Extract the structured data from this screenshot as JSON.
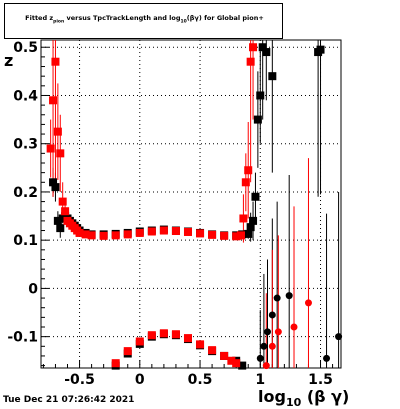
{
  "title": {
    "pre": "Fitted  z",
    "sub1": "pion",
    "mid": " versus TpcTrackLength and log",
    "sub2": "10",
    "post": "(βγ) for Global pion+"
  },
  "footer": "Tue Dec 21 07:26:42 2021",
  "chart_data": {
    "type": "scatter",
    "xlabel": "log10 (β γ)",
    "xlabel_main": "log",
    "xlabel_sub": "10",
    "xlabel_rest": " (β γ)",
    "ylabel": "z",
    "xlim": [
      -0.82,
      1.67
    ],
    "ylim": [
      -0.165,
      0.515
    ],
    "xticks": [
      -0.5,
      0,
      0.5,
      1,
      1.5
    ],
    "xtick_labels": [
      "-0.5",
      "0",
      "0.5",
      "1",
      "1.5"
    ],
    "yticks": [
      -0.1,
      0,
      0.1,
      0.2,
      0.3,
      0.4,
      0.5
    ],
    "ytick_labels": [
      "-0.1",
      "0",
      "0.1",
      "0.2",
      "0.3",
      "0.4",
      "0.5"
    ],
    "grid": true,
    "colors": {
      "black": "#000000",
      "red": "#ff0000"
    },
    "series": [
      {
        "color": "black",
        "marker": "square",
        "points": [
          {
            "x": -0.72,
            "y": 0.22,
            "e": 0.03
          },
          {
            "x": -0.7,
            "y": 0.21,
            "e": 0.03
          },
          {
            "x": -0.68,
            "y": 0.14,
            "e": 0.02
          },
          {
            "x": -0.66,
            "y": 0.125,
            "e": 0.02
          },
          {
            "x": -0.64,
            "y": 0.145,
            "e": 0.01
          },
          {
            "x": -0.62,
            "y": 0.15,
            "e": 0.01
          },
          {
            "x": -0.6,
            "y": 0.145,
            "e": 0.01
          },
          {
            "x": -0.58,
            "y": 0.14,
            "e": 0.005
          },
          {
            "x": -0.56,
            "y": 0.135,
            "e": 0.005
          },
          {
            "x": -0.54,
            "y": 0.13,
            "e": 0.005
          },
          {
            "x": -0.52,
            "y": 0.125,
            "e": 0.005
          },
          {
            "x": -0.5,
            "y": 0.12,
            "e": 0.005
          },
          {
            "x": -0.45,
            "y": 0.115,
            "e": 0.003
          },
          {
            "x": -0.4,
            "y": 0.112,
            "e": 0.003
          },
          {
            "x": -0.3,
            "y": 0.112,
            "e": 0.003
          },
          {
            "x": -0.2,
            "y": 0.113,
            "e": 0.003
          },
          {
            "x": -0.1,
            "y": 0.115,
            "e": 0.003
          },
          {
            "x": 0.0,
            "y": 0.118,
            "e": 0.003
          },
          {
            "x": 0.1,
            "y": 0.12,
            "e": 0.003
          },
          {
            "x": 0.2,
            "y": 0.122,
            "e": 0.003
          },
          {
            "x": 0.3,
            "y": 0.12,
            "e": 0.003
          },
          {
            "x": 0.4,
            "y": 0.118,
            "e": 0.003
          },
          {
            "x": 0.5,
            "y": 0.115,
            "e": 0.003
          },
          {
            "x": 0.6,
            "y": 0.112,
            "e": 0.003
          },
          {
            "x": 0.7,
            "y": 0.11,
            "e": 0.003
          },
          {
            "x": 0.8,
            "y": 0.11,
            "e": 0.004
          },
          {
            "x": 0.85,
            "y": 0.112,
            "e": 0.005
          },
          {
            "x": 0.9,
            "y": 0.113,
            "e": 0.01
          },
          {
            "x": 0.92,
            "y": 0.127,
            "e": 0.03
          },
          {
            "x": 0.94,
            "y": 0.14,
            "e": 0.04
          },
          {
            "x": 0.96,
            "y": 0.19,
            "e": 0.05
          },
          {
            "x": 0.98,
            "y": 0.35,
            "e": 0.1
          },
          {
            "x": 1.0,
            "y": 0.4,
            "e": 0.1
          },
          {
            "x": 1.02,
            "y": 0.5,
            "e": 0.15
          },
          {
            "x": 1.05,
            "y": 0.49,
            "e": 0.1
          },
          {
            "x": 1.1,
            "y": 0.44,
            "e": 0.2
          },
          {
            "x": 1.48,
            "y": 0.49,
            "e": 0.3
          },
          {
            "x": 1.5,
            "y": 0.495,
            "e": 0.3
          },
          {
            "x": -0.2,
            "y": -0.16,
            "e": 0.004
          },
          {
            "x": -0.1,
            "y": -0.135,
            "e": 0.003
          },
          {
            "x": 0.0,
            "y": -0.115,
            "e": 0.003
          },
          {
            "x": 0.1,
            "y": -0.1,
            "e": 0.003
          },
          {
            "x": 0.2,
            "y": -0.095,
            "e": 0.003
          },
          {
            "x": 0.3,
            "y": -0.097,
            "e": 0.003
          },
          {
            "x": 0.4,
            "y": -0.105,
            "e": 0.003
          },
          {
            "x": 0.5,
            "y": -0.118,
            "e": 0.003
          },
          {
            "x": 0.6,
            "y": -0.13,
            "e": 0.003
          },
          {
            "x": 0.7,
            "y": -0.14,
            "e": 0.003
          },
          {
            "x": 0.8,
            "y": -0.15,
            "e": 0.004
          },
          {
            "x": 0.85,
            "y": -0.16,
            "e": 0.005
          }
        ]
      },
      {
        "color": "black",
        "marker": "circle",
        "points": [
          {
            "x": 1.0,
            "y": -0.145,
            "e": 0.1
          },
          {
            "x": 1.03,
            "y": -0.12,
            "e": 0.15
          },
          {
            "x": 1.06,
            "y": -0.09,
            "e": 0.15
          },
          {
            "x": 1.1,
            "y": -0.055,
            "e": 0.2
          },
          {
            "x": 1.14,
            "y": -0.02,
            "e": 0.2
          },
          {
            "x": 1.24,
            "y": -0.015,
            "e": 0.25
          },
          {
            "x": 1.55,
            "y": -0.145,
            "e": 0.3
          },
          {
            "x": 1.65,
            "y": -0.1,
            "e": 0.3
          }
        ]
      },
      {
        "color": "red",
        "marker": "square",
        "points": [
          {
            "x": -0.74,
            "y": 0.29,
            "e": 0.06
          },
          {
            "x": -0.72,
            "y": 0.39,
            "e": 0.2
          },
          {
            "x": -0.7,
            "y": 0.47,
            "e": 0.25
          },
          {
            "x": -0.68,
            "y": 0.325,
            "e": 0.1
          },
          {
            "x": -0.66,
            "y": 0.28,
            "e": 0.08
          },
          {
            "x": -0.64,
            "y": 0.18,
            "e": 0.04
          },
          {
            "x": -0.62,
            "y": 0.16,
            "e": 0.02
          },
          {
            "x": -0.6,
            "y": 0.14,
            "e": 0.01
          },
          {
            "x": -0.58,
            "y": 0.135,
            "e": 0.01
          },
          {
            "x": -0.56,
            "y": 0.13,
            "e": 0.005
          },
          {
            "x": -0.54,
            "y": 0.125,
            "e": 0.005
          },
          {
            "x": -0.52,
            "y": 0.12,
            "e": 0.005
          },
          {
            "x": -0.5,
            "y": 0.115,
            "e": 0.004
          },
          {
            "x": -0.45,
            "y": 0.112,
            "e": 0.003
          },
          {
            "x": -0.4,
            "y": 0.11,
            "e": 0.003
          },
          {
            "x": -0.3,
            "y": 0.109,
            "e": 0.003
          },
          {
            "x": -0.2,
            "y": 0.11,
            "e": 0.003
          },
          {
            "x": -0.1,
            "y": 0.112,
            "e": 0.003
          },
          {
            "x": 0.0,
            "y": 0.115,
            "e": 0.003
          },
          {
            "x": 0.1,
            "y": 0.118,
            "e": 0.003
          },
          {
            "x": 0.2,
            "y": 0.12,
            "e": 0.003
          },
          {
            "x": 0.3,
            "y": 0.119,
            "e": 0.003
          },
          {
            "x": 0.4,
            "y": 0.117,
            "e": 0.003
          },
          {
            "x": 0.5,
            "y": 0.114,
            "e": 0.003
          },
          {
            "x": 0.6,
            "y": 0.111,
            "e": 0.003
          },
          {
            "x": 0.7,
            "y": 0.109,
            "e": 0.003
          },
          {
            "x": 0.8,
            "y": 0.108,
            "e": 0.004
          },
          {
            "x": 0.84,
            "y": 0.11,
            "e": 0.01
          },
          {
            "x": 0.86,
            "y": 0.145,
            "e": 0.05
          },
          {
            "x": 0.88,
            "y": 0.22,
            "e": 0.06
          },
          {
            "x": 0.9,
            "y": 0.245,
            "e": 0.1
          },
          {
            "x": 0.92,
            "y": 0.47,
            "e": 0.25
          },
          {
            "x": 0.94,
            "y": 0.5,
            "e": 0.15
          },
          {
            "x": -0.2,
            "y": -0.155,
            "e": 0.004
          },
          {
            "x": -0.1,
            "y": -0.13,
            "e": 0.003
          },
          {
            "x": 0.0,
            "y": -0.11,
            "e": 0.003
          },
          {
            "x": 0.1,
            "y": -0.097,
            "e": 0.003
          },
          {
            "x": 0.2,
            "y": -0.093,
            "e": 0.003
          },
          {
            "x": 0.3,
            "y": -0.095,
            "e": 0.003
          },
          {
            "x": 0.4,
            "y": -0.103,
            "e": 0.003
          },
          {
            "x": 0.5,
            "y": -0.116,
            "e": 0.003
          },
          {
            "x": 0.6,
            "y": -0.128,
            "e": 0.003
          },
          {
            "x": 0.7,
            "y": -0.14,
            "e": 0.003
          },
          {
            "x": 0.76,
            "y": -0.15,
            "e": 0.004
          },
          {
            "x": 0.8,
            "y": -0.155,
            "e": 0.005
          }
        ]
      },
      {
        "color": "red",
        "marker": "circle",
        "points": [
          {
            "x": 1.05,
            "y": -0.16,
            "e": 0.15
          },
          {
            "x": 1.1,
            "y": -0.12,
            "e": 0.2
          },
          {
            "x": 1.15,
            "y": -0.09,
            "e": 0.2
          },
          {
            "x": 1.28,
            "y": -0.08,
            "e": 0.25
          },
          {
            "x": 1.4,
            "y": -0.03,
            "e": 0.3
          }
        ]
      }
    ]
  }
}
